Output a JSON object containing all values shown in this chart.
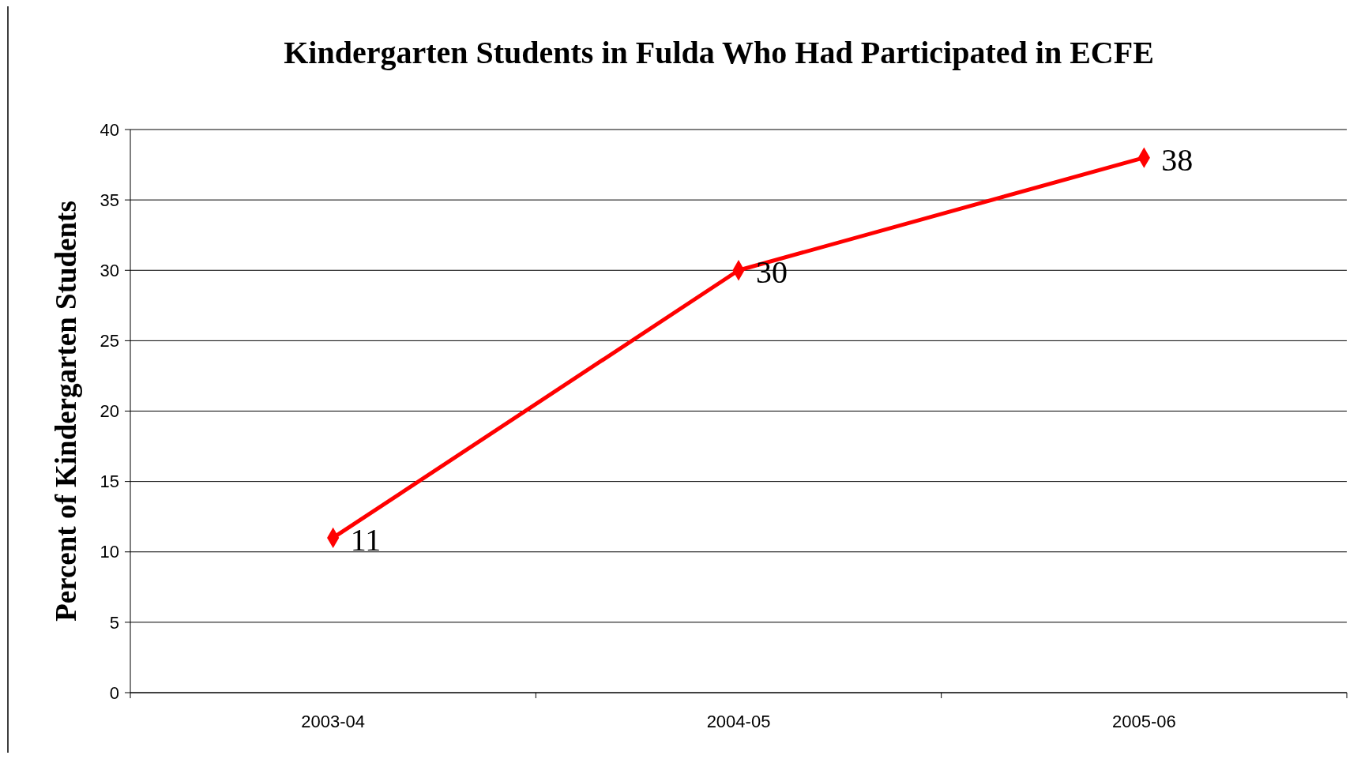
{
  "chart_data": {
    "type": "line",
    "title": "Kindergarten Students in Fulda Who Had Participated in ECFE",
    "ylabel": "Percent of Kindergarten Students",
    "categories": [
      "2003-04",
      "2004-05",
      "2005-06"
    ],
    "series": [
      {
        "color": "#ff0000",
        "values": [
          11,
          30,
          38
        ]
      }
    ],
    "ylim": [
      0,
      40
    ],
    "yticks": [
      0,
      5,
      10,
      15,
      20,
      25,
      30,
      35,
      40
    ],
    "grid": "y",
    "marker": "diamond",
    "data_labels": true
  }
}
